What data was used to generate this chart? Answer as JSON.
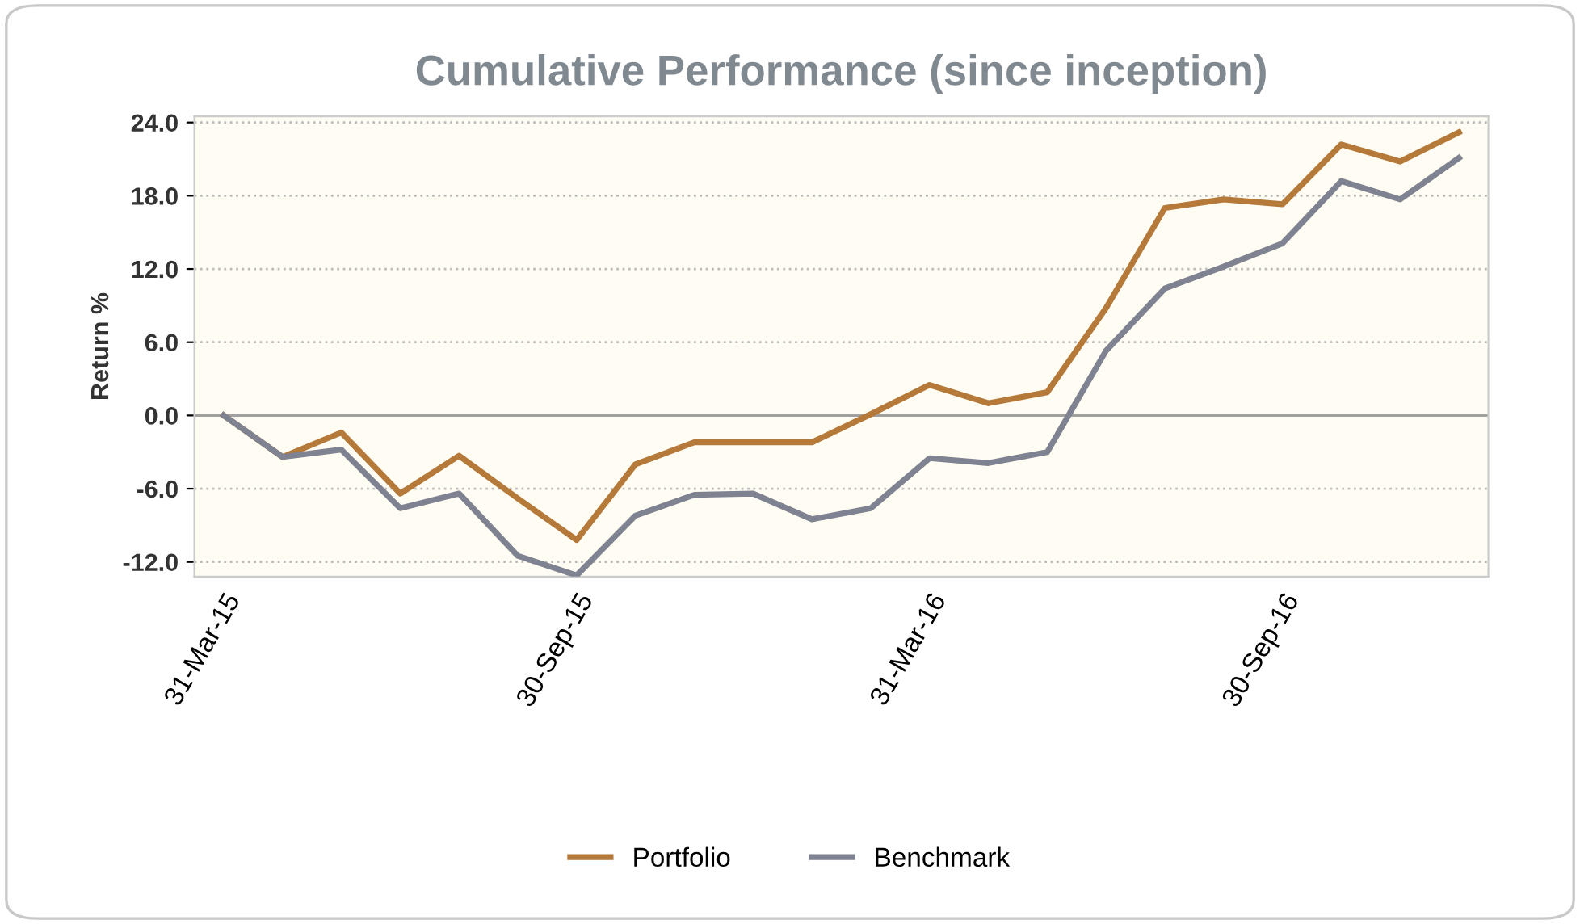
{
  "chart_data": {
    "type": "line",
    "title": "Cumulative Performance (since inception)",
    "ylabel": "Return %",
    "categories": [
      "31-Mar-15",
      null,
      null,
      null,
      null,
      null,
      "30-Sep-15",
      null,
      null,
      null,
      null,
      null,
      "31-Mar-16",
      null,
      null,
      null,
      null,
      null,
      "30-Sep-16",
      null,
      null,
      null
    ],
    "series": [
      {
        "name": "Portfolio",
        "color": "#b5793a",
        "values": [
          0,
          -3.4,
          -1.4,
          -6.4,
          -3.3,
          -6.8,
          -10.2,
          -4.0,
          -2.2,
          -2.2,
          -2.2,
          0.1,
          2.5,
          1.0,
          1.9,
          8.8,
          17.0,
          17.7,
          17.3,
          22.2,
          20.8,
          23.2
        ]
      },
      {
        "name": "Benchmark",
        "color": "#7f8290",
        "values": [
          0,
          -3.4,
          -2.8,
          -7.6,
          -6.4,
          -11.5,
          -13.1,
          -8.2,
          -6.5,
          -6.4,
          -8.5,
          -7.6,
          -3.5,
          -3.9,
          -3.0,
          5.3,
          10.4,
          12.2,
          14.1,
          19.2,
          17.7,
          21.1
        ]
      }
    ],
    "ylim": [
      -13.2,
      24.5
    ],
    "yticks": [
      {
        "value": -12,
        "label": "-12.0"
      },
      {
        "value": -6,
        "label": "-6.0"
      },
      {
        "value": 0,
        "label": "0.0"
      },
      {
        "value": 6,
        "label": "6.0"
      },
      {
        "value": 12,
        "label": "12.0"
      },
      {
        "value": 18,
        "label": "18.0"
      },
      {
        "value": 24,
        "label": "24.0"
      }
    ],
    "ref_lines": [
      {
        "axis": "y",
        "value": 0,
        "label": null,
        "color": "#a0a0a0",
        "line_style": "solid"
      }
    ],
    "grid": "y",
    "legend": "bottom",
    "marker": "none",
    "line_style": "solid"
  }
}
